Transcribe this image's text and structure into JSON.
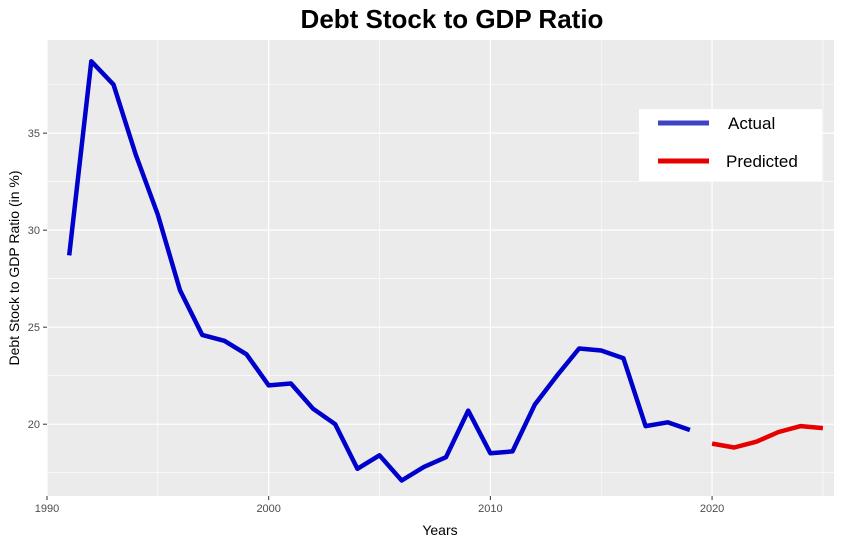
{
  "chart_data": {
    "type": "line",
    "title": "Debt Stock to GDP Ratio",
    "xlabel": "Years",
    "ylabel": "Debt Stock to GDP Ratio (in %)",
    "xlim": [
      1990,
      2025.5
    ],
    "ylim": [
      16.3,
      39.8
    ],
    "x_ticks": [
      1990,
      2000,
      2010,
      2020
    ],
    "y_ticks": [
      20,
      25,
      30,
      35
    ],
    "grid": true,
    "legend_position": "top-right",
    "series": [
      {
        "name": "Actual",
        "color": "#0000cd",
        "x": [
          1991,
          1992,
          1993,
          1994,
          1995,
          1996,
          1997,
          1998,
          1999,
          2000,
          2001,
          2002,
          2003,
          2004,
          2005,
          2006,
          2007,
          2008,
          2009,
          2010,
          2011,
          2012,
          2013,
          2014,
          2015,
          2016,
          2017,
          2018,
          2019
        ],
        "y": [
          28.7,
          38.7,
          37.5,
          33.9,
          30.8,
          26.9,
          24.6,
          24.3,
          23.6,
          22.0,
          22.1,
          20.8,
          20.0,
          17.7,
          18.4,
          17.1,
          17.8,
          18.3,
          20.7,
          18.5,
          18.6,
          21.0,
          22.5,
          23.9,
          23.8,
          23.4,
          19.9,
          20.1,
          19.7
        ]
      },
      {
        "name": "Predicted",
        "color": "#e60000",
        "x": [
          2020,
          2021,
          2022,
          2023,
          2024,
          2025
        ],
        "y": [
          19.0,
          18.8,
          19.1,
          19.6,
          19.9,
          19.8
        ]
      }
    ]
  }
}
